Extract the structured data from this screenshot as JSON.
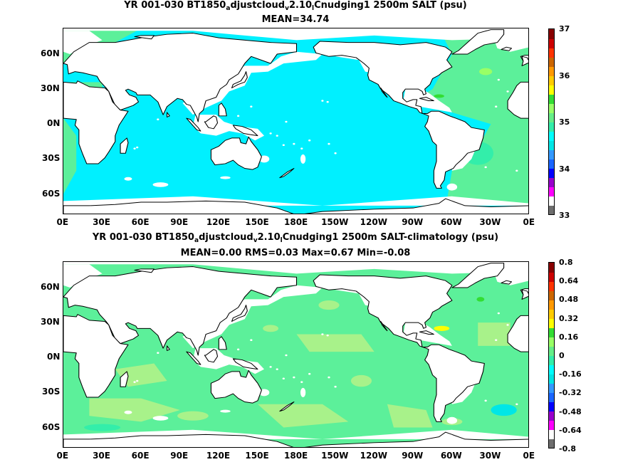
{
  "panels": [
    {
      "title_parts": [
        "YR 001-030 BT1850",
        "a",
        "djustcloud",
        "v",
        "2.10",
        "l",
        "Cnudging1 2500m SALT (psu)"
      ],
      "stats": "MEAN=34.74",
      "variable": "SALT",
      "units": "psu",
      "colorbar": {
        "labels": [
          "37",
          "36",
          "35",
          "34",
          "33"
        ],
        "label_levels": [
          37,
          36,
          35,
          34,
          33
        ],
        "min": 33,
        "max": 37,
        "colors": [
          "#6e6e6e",
          "#ffffff",
          "#ff00ff",
          "#9900cc",
          "#0000ff",
          "#1a66ff",
          "#3399ff",
          "#00e6e6",
          "#00ffff",
          "#33eeaa",
          "#66ee88",
          "#99ff66",
          "#33dd33",
          "#ffff00",
          "#ffcc00",
          "#ff9900",
          "#cc6600",
          "#ff3300",
          "#cc0000",
          "#880000"
        ]
      },
      "ocean_color": "#00f0ff",
      "atlantic_color": "#5cf09a"
    },
    {
      "title_parts": [
        "YR 001-030 BT1850",
        "a",
        "djustcloud",
        "v",
        "2.10",
        "l",
        "Cnudging1 2500m SALT-climatology (psu)"
      ],
      "stats": "MEAN=0.00   RMS=0.03   Max=0.67   Min=-0.08",
      "variable": "SALT-climatology",
      "units": "psu",
      "colorbar": {
        "labels": [
          "0.8",
          "0.64",
          "0.48",
          "0.32",
          "0.16",
          "0",
          "-0.16",
          "-0.32",
          "-0.48",
          "-0.64",
          "-0.8"
        ],
        "label_levels": [
          0.8,
          0.64,
          0.48,
          0.32,
          0.16,
          0,
          -0.16,
          -0.32,
          -0.48,
          -0.64,
          -0.8
        ],
        "min": -0.8,
        "max": 0.8,
        "colors": [
          "#6e6e6e",
          "#ffffff",
          "#ff00ff",
          "#9900cc",
          "#0000ff",
          "#1a66ff",
          "#3399ff",
          "#00e6e6",
          "#00ffff",
          "#33eeaa",
          "#66ee88",
          "#99ff66",
          "#33dd33",
          "#ffff00",
          "#ffcc00",
          "#ff9900",
          "#cc6600",
          "#ff3300",
          "#cc0000",
          "#880000"
        ]
      },
      "ocean_color": "#5cf09a",
      "atlantic_color": "#5cf09a"
    }
  ],
  "x_tick_labels": [
    "0E",
    "30E",
    "60E",
    "90E",
    "120E",
    "150E",
    "180E",
    "150W",
    "120W",
    "90W",
    "60W",
    "30W",
    "0E"
  ],
  "x_tick_lons": [
    0,
    30,
    60,
    90,
    120,
    150,
    180,
    210,
    240,
    270,
    300,
    330,
    360
  ],
  "y_tick_labels": [
    "60N",
    "30N",
    "0N",
    "30S",
    "60S"
  ],
  "y_tick_lats": [
    60,
    30,
    0,
    -30,
    -60
  ],
  "lat_range": [
    -78,
    82
  ],
  "lon_range": [
    0,
    360
  ]
}
